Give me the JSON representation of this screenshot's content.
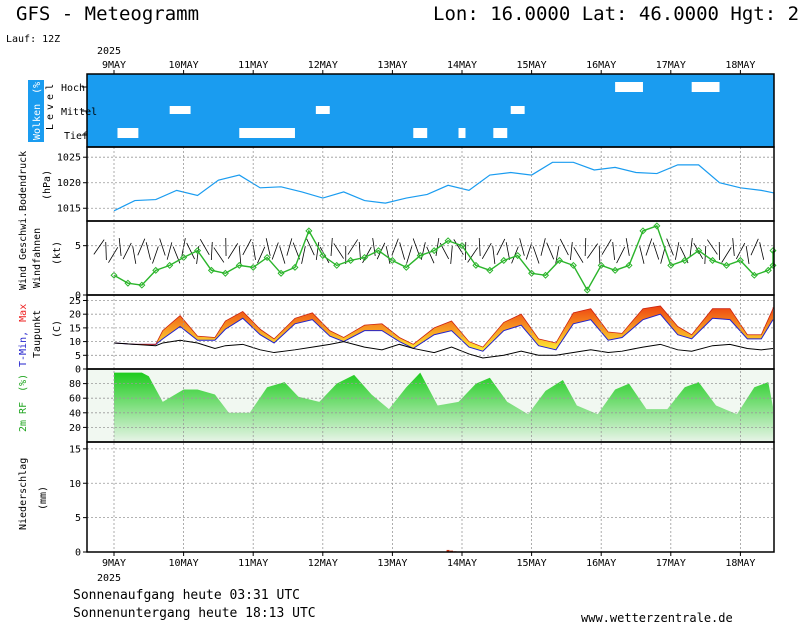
{
  "header": {
    "title": "GFS - Meteogramm",
    "coords": "Lon: 16.0000 Lat: 46.0000 Hgt: 2",
    "run": "Lauf: 12Z"
  },
  "colors": {
    "cloud_bg": "#1a9cf0",
    "cloud_clear": "#ffffff",
    "pressure_line": "#1a9cf0",
    "wind_speed": "#2bb52b",
    "temp_fill_low": "#ffee33",
    "temp_fill_high": "#ee4411",
    "tmin_label": "#2222cc",
    "tmax_label": "#ee2222",
    "rh_fill": "#1fcc1f",
    "precip": "#cc3311"
  },
  "x_axis": {
    "year_top": "2025",
    "year_bottom": "2025",
    "days": [
      "9MAY",
      "10MAY",
      "11MAY",
      "12MAY",
      "13MAY",
      "14MAY",
      "15MAY",
      "16MAY",
      "17MAY",
      "18MAY"
    ]
  },
  "panels": {
    "clouds": {
      "label_main": "Wolken",
      "label_unit": "(%)",
      "level_word": "Level",
      "levels": [
        "Hoch",
        "Mittel",
        "Tief"
      ]
    },
    "pressure": {
      "label_main": "Bodendruck",
      "label_unit": "(hPa)",
      "ticks": [
        "1025",
        "1020",
        "1015"
      ]
    },
    "wind": {
      "label_speed": "Wind Geschwi.",
      "label_barbs": "Windfahnen",
      "label_unit": "(kt)",
      "ticks": [
        "5",
        "0"
      ]
    },
    "temp": {
      "label_min": "T-Min,",
      "label_max": "Max",
      "label_dew": "Taupunkt",
      "label_unit": "(C)",
      "ticks": [
        "25",
        "20",
        "15",
        "10",
        "5",
        "0"
      ]
    },
    "rh": {
      "label_main": "2m RF",
      "label_unit": "(%)",
      "ticks": [
        "80",
        "60",
        "40",
        "20"
      ]
    },
    "precip": {
      "label_main": "Niederschlag",
      "label_unit": "(mm)",
      "ticks": [
        "15",
        "10",
        "5",
        "0"
      ]
    }
  },
  "footer": {
    "sunrise": "Sonnenaufgang heute 03:31 UTC",
    "sunset": "Sonnenuntergang heute 18:13 UTC",
    "site": "www.wetterzentrale.de"
  },
  "chart_data": [
    {
      "type": "area",
      "name": "clouds",
      "y_categories": [
        "Tief",
        "Mittel",
        "Hoch"
      ],
      "low_clear_gaps_day": [
        [
          0.05,
          0.35
        ],
        [
          1.8,
          2.6
        ],
        [
          4.3,
          4.5
        ],
        [
          4.95,
          5.05
        ],
        [
          5.45,
          5.65
        ]
      ],
      "mid_clear_gaps_day": [
        [
          0.8,
          1.1
        ],
        [
          2.9,
          3.1
        ],
        [
          5.7,
          5.9
        ]
      ],
      "high_clear_gaps_day": [
        [
          7.2,
          7.6
        ],
        [
          8.3,
          8.7
        ]
      ]
    },
    {
      "type": "line",
      "name": "pressure",
      "ylim": [
        1012.5,
        1027
      ],
      "x_day": [
        0.0,
        0.3,
        0.6,
        0.9,
        1.2,
        1.5,
        1.8,
        2.1,
        2.4,
        2.7,
        3.0,
        3.3,
        3.6,
        3.9,
        4.2,
        4.5,
        4.8,
        5.1,
        5.4,
        5.7,
        6.0,
        6.3,
        6.6,
        6.9,
        7.2,
        7.5,
        7.8,
        8.1,
        8.4,
        8.7,
        9.0,
        9.3,
        9.6,
        9.85
      ],
      "values": [
        1014.5,
        1016.5,
        1016.7,
        1018.5,
        1017.5,
        1020.5,
        1021.5,
        1019.0,
        1019.2,
        1018.2,
        1017.0,
        1018.2,
        1016.5,
        1016.0,
        1017.0,
        1017.7,
        1019.5,
        1018.5,
        1021.5,
        1022.0,
        1021.5,
        1024.0,
        1024.0,
        1022.5,
        1023.0,
        1022.0,
        1021.8,
        1023.5,
        1023.5,
        1020.0,
        1019.0,
        1018.5,
        1018.0,
        1016.5
      ]
    },
    {
      "type": "line",
      "name": "wind_speed_kt",
      "ylim": [
        0,
        7.5
      ],
      "x_day": [
        0.0,
        0.2,
        0.4,
        0.6,
        0.8,
        1.0,
        1.2,
        1.4,
        1.6,
        1.8,
        2.0,
        2.2,
        2.4,
        2.6,
        2.8,
        3.0,
        3.2,
        3.4,
        3.6,
        3.8,
        4.0,
        4.2,
        4.4,
        4.6,
        4.8,
        5.0,
        5.2,
        5.4,
        5.6,
        5.8,
        6.0,
        6.2,
        6.4,
        6.6,
        6.8,
        7.0,
        7.2,
        7.4,
        7.6,
        7.8,
        8.0,
        8.2,
        8.4,
        8.6,
        8.8,
        9.0,
        9.2,
        9.4,
        9.6,
        9.85
      ],
      "values": [
        2.0,
        1.2,
        1.0,
        2.5,
        3.0,
        3.8,
        4.5,
        2.5,
        2.2,
        3.0,
        2.8,
        3.8,
        2.2,
        2.8,
        6.5,
        4.0,
        3.0,
        3.5,
        3.8,
        4.5,
        3.5,
        2.8,
        4.0,
        4.5,
        5.5,
        5.0,
        3.0,
        2.5,
        3.5,
        4.0,
        2.2,
        2.0,
        3.5,
        3.0,
        0.5,
        3.0,
        2.5,
        3.0,
        6.5,
        7.0,
        3.0,
        3.5,
        4.5,
        3.5,
        3.0,
        3.5,
        2.0,
        2.5,
        3.0,
        4.5
      ]
    },
    {
      "type": "area",
      "name": "temperature_c",
      "ylim": [
        0,
        27
      ],
      "x_day": [
        0.0,
        0.3,
        0.6,
        0.7,
        0.95,
        1.2,
        1.45,
        1.6,
        1.85,
        2.1,
        2.3,
        2.6,
        2.85,
        3.1,
        3.3,
        3.6,
        3.85,
        4.1,
        4.3,
        4.6,
        4.85,
        5.1,
        5.3,
        5.6,
        5.85,
        6.1,
        6.35,
        6.6,
        6.85,
        7.1,
        7.3,
        7.6,
        7.85,
        8.1,
        8.3,
        8.6,
        8.85,
        9.1,
        9.3,
        9.6,
        9.85
      ],
      "t_min": [
        9.5,
        9.0,
        9.0,
        11.0,
        15.5,
        10.5,
        10.5,
        14.5,
        18.5,
        12.5,
        9.5,
        16.5,
        18.0,
        12.0,
        10.0,
        14.0,
        14.0,
        10.0,
        7.5,
        12.5,
        14.0,
        8.0,
        6.5,
        14.0,
        16.0,
        8.5,
        7.0,
        16.5,
        18.0,
        10.5,
        11.5,
        18.0,
        20.0,
        12.5,
        11.0,
        18.5,
        18.0,
        11.0,
        11.0,
        18.0,
        18.0
      ],
      "t_max": [
        9.5,
        9.0,
        9.0,
        14.0,
        19.5,
        12.0,
        11.5,
        17.5,
        21.0,
        14.5,
        11.0,
        18.5,
        20.5,
        14.0,
        11.5,
        16.0,
        16.5,
        11.5,
        9.0,
        15.0,
        17.5,
        10.0,
        8.0,
        17.0,
        20.0,
        11.0,
        9.5,
        20.5,
        22.0,
        13.5,
        13.0,
        22.0,
        23.0,
        15.5,
        12.5,
        22.0,
        22.0,
        12.5,
        12.5,
        22.0,
        22.5
      ],
      "dew_point": [
        9.5,
        9.0,
        8.5,
        9.5,
        10.5,
        9.5,
        7.5,
        8.5,
        9.0,
        7.0,
        6.0,
        7.0,
        8.0,
        9.0,
        10.0,
        8.0,
        7.0,
        9.0,
        7.5,
        6.0,
        8.0,
        5.5,
        4.0,
        5.0,
        6.5,
        5.0,
        5.0,
        6.0,
        7.0,
        6.0,
        6.5,
        8.0,
        9.0,
        7.0,
        6.5,
        8.5,
        9.0,
        7.5,
        7.0,
        7.5,
        7.5
      ]
    },
    {
      "type": "area",
      "name": "relative_humidity_pct",
      "ylim": [
        0,
        100
      ],
      "x_day": [
        0.0,
        0.2,
        0.4,
        0.5,
        0.7,
        1.0,
        1.2,
        1.45,
        1.65,
        1.95,
        2.2,
        2.45,
        2.65,
        2.95,
        3.2,
        3.45,
        3.7,
        3.95,
        4.2,
        4.4,
        4.65,
        4.95,
        5.2,
        5.4,
        5.65,
        5.95,
        6.2,
        6.45,
        6.65,
        6.95,
        7.2,
        7.4,
        7.65,
        7.95,
        8.2,
        8.4,
        8.65,
        8.95,
        9.2,
        9.4,
        9.65,
        9.85
      ],
      "values": [
        95,
        95,
        95,
        90,
        55,
        72,
        72,
        65,
        40,
        40,
        75,
        82,
        62,
        55,
        80,
        92,
        65,
        45,
        75,
        95,
        50,
        55,
        80,
        88,
        55,
        38,
        70,
        85,
        50,
        38,
        72,
        80,
        45,
        45,
        75,
        82,
        50,
        38,
        75,
        82,
        48,
        42
      ]
    },
    {
      "type": "bar",
      "name": "precipitation_mm",
      "ylim": [
        0,
        16
      ],
      "x_day": [
        4.8,
        4.85,
        4.9
      ],
      "values": [
        0.3,
        0.2,
        0.1
      ]
    }
  ]
}
